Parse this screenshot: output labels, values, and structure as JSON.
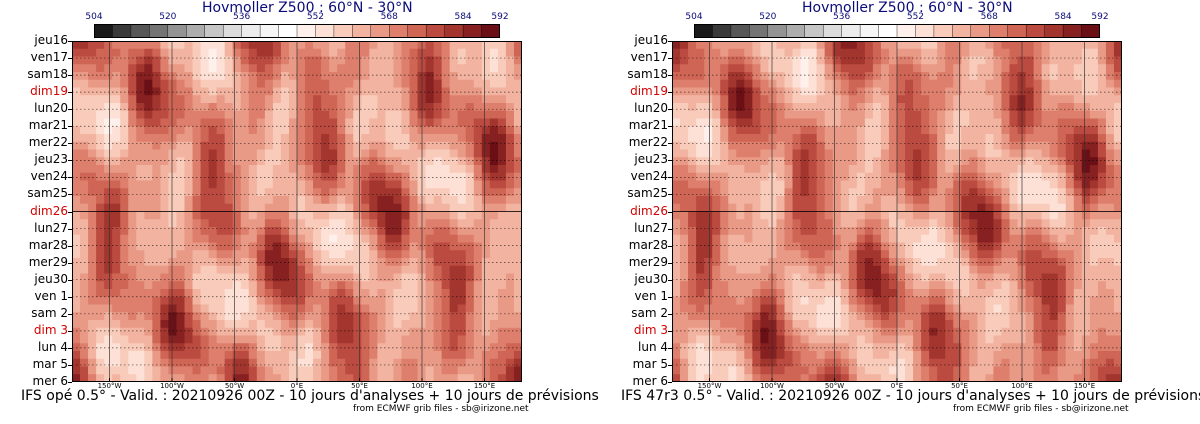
{
  "colorbar": {
    "ticks": [
      "504",
      "520",
      "536",
      "552",
      "568",
      "584",
      "592"
    ],
    "colors": [
      "#1a1a1a",
      "#3a3a3a",
      "#565656",
      "#747474",
      "#939393",
      "#adadad",
      "#c6c6c6",
      "#dcdcdc",
      "#ececec",
      "#f6f6f6",
      "#ffffff",
      "#fff0ec",
      "#fde0d6",
      "#f8cbbb",
      "#f2b3a1",
      "#e99a86",
      "#dd7f6c",
      "#ce6555",
      "#bb4b41",
      "#a3352f",
      "#872021",
      "#6a0f15"
    ]
  },
  "days": [
    {
      "label": "jeu16",
      "sunday": false
    },
    {
      "label": "ven17",
      "sunday": false
    },
    {
      "label": "sam18",
      "sunday": false
    },
    {
      "label": "dim19",
      "sunday": true
    },
    {
      "label": "lun20",
      "sunday": false
    },
    {
      "label": "mar21",
      "sunday": false
    },
    {
      "label": "mer22",
      "sunday": false
    },
    {
      "label": "jeu23",
      "sunday": false
    },
    {
      "label": "ven24",
      "sunday": false
    },
    {
      "label": "sam25",
      "sunday": false
    },
    {
      "label": "dim26",
      "sunday": true
    },
    {
      "label": "lun27",
      "sunday": false
    },
    {
      "label": "mar28",
      "sunday": false
    },
    {
      "label": "mer29",
      "sunday": false
    },
    {
      "label": "jeu30",
      "sunday": false
    },
    {
      "label": "ven 1",
      "sunday": false
    },
    {
      "label": "sam 2",
      "sunday": false
    },
    {
      "label": "dim 3",
      "sunday": true
    },
    {
      "label": "lun 4",
      "sunday": false
    },
    {
      "label": "mar 5",
      "sunday": false
    },
    {
      "label": "mer 6",
      "sunday": false
    }
  ],
  "longitudes": [
    "150°W",
    "100°W",
    "50°W",
    "0°E",
    "50°E",
    "100°E",
    "150°E"
  ],
  "credit": "from ECMWF grib files - sb@irizone.net",
  "chart_data": [
    {
      "type": "heatmap",
      "title": "Hovmoller Z500 : 60°N - 30°N",
      "caption": "IFS opé 0.5° - Valid. : 20210926 00Z - 10 jours d'analyses + 10 jours de prévisions",
      "x_ticks": [
        -150,
        -100,
        -50,
        0,
        50,
        100,
        150
      ],
      "xlim": [
        -180,
        180
      ],
      "color_range": [
        504,
        592
      ],
      "analysis_forecast_split": "dim26"
    },
    {
      "type": "heatmap",
      "title": "Hovmoller Z500 : 60°N - 30°N",
      "caption": "IFS 47r3 0.5° - Valid. : 20210926 00Z - 10 jours d'analyses + 10 jours de prévisions",
      "x_ticks": [
        -150,
        -100,
        -50,
        0,
        50,
        100,
        150
      ],
      "xlim": [
        -180,
        180
      ],
      "color_range": [
        504,
        592
      ],
      "analysis_forecast_split": "dim26"
    }
  ]
}
